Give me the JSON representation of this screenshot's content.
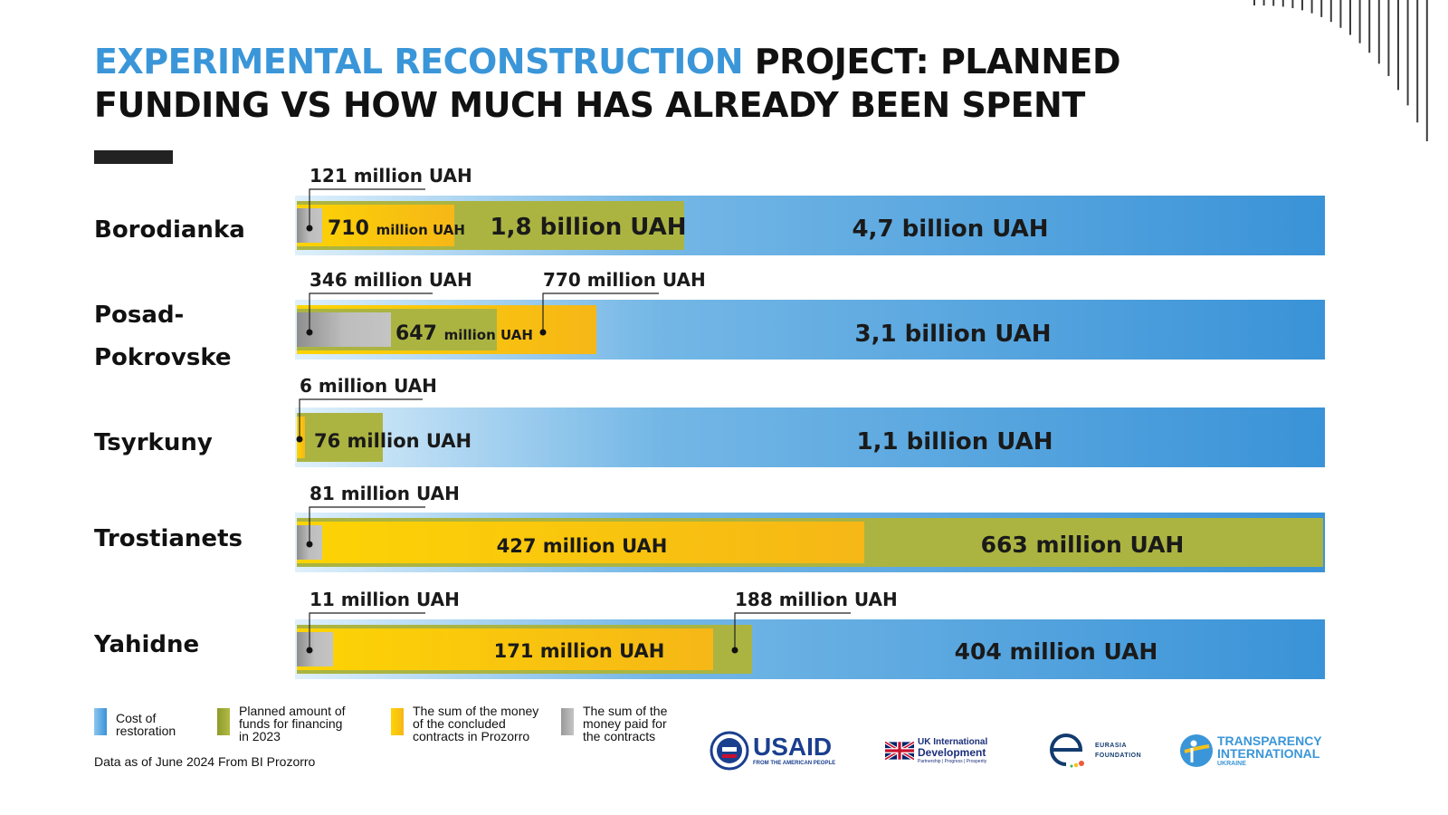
{
  "header": {
    "title_accent": "EXPERIMENTAL RECONSTRUCTION",
    "title_rest_line1": " PROJECT: PLANNED",
    "title_line2": "FUNDING VS HOW MUCH HAS ALREADY BEEN SPENT"
  },
  "colors": {
    "accent": "#3a96d8",
    "cost_of_restoration": "#3a96d8",
    "planned_funds": "#abb441",
    "concluded_contracts": "#f9c60f",
    "paid_contracts": "#bdbdbd"
  },
  "chart_data": {
    "type": "bar",
    "title": "EXPERIMENTAL RECONSTRUCTION PROJECT: PLANNED FUNDING VS HOW MUCH HAS ALREADY BEEN SPENT",
    "unit": "million UAH",
    "categories": [
      "Borodianka",
      "Posad-Pokrovske",
      "Tsyrkuny",
      "Trostianets",
      "Yahidne"
    ],
    "category_labels": [
      [
        "Borodianka"
      ],
      [
        "Posad-",
        "Pokrovske"
      ],
      [
        "Tsyrkuny"
      ],
      [
        "Trostianets"
      ],
      [
        "Yahidne"
      ]
    ],
    "series": [
      {
        "name": "Cost of restoration",
        "values": [
          4700,
          3100,
          1100,
          null,
          404
        ]
      },
      {
        "name": "Planned amount of funds for financing in 2023",
        "values": [
          1800,
          647,
          76,
          663,
          188
        ]
      },
      {
        "name": "The sum of the money of the concluded contracts in Prozorro",
        "values": [
          710,
          770,
          6,
          427,
          171
        ]
      },
      {
        "name": "The sum of the money paid for the contracts",
        "values": [
          121,
          346,
          null,
          81,
          11
        ]
      }
    ],
    "labels": {
      "Borodianka": {
        "cost": "4,7 billion  UAH",
        "planned": "1,8 billion  UAH",
        "contracts_num": "710",
        "contracts_unit": "million UAH",
        "paid": "121 million UAH"
      },
      "Posad-Pokrovske": {
        "cost": "3,1 billion  UAH",
        "planned_num": "647",
        "planned_unit": "million UAH",
        "contracts": "770 million UAH",
        "paid": "346 million UAH"
      },
      "Tsyrkuny": {
        "cost": "1,1  billion  UAH",
        "planned": "76  million UAH",
        "contracts": "6 million UAH"
      },
      "Trostianets": {
        "planned": "663 million UAH",
        "contracts": "427 million UAH",
        "paid": "81 million UAH"
      },
      "Yahidne": {
        "cost": "404 million UAH",
        "planned": "188  million UAH",
        "contracts": "171  million UAH",
        "paid": "11 million UAH"
      }
    },
    "legend_placement": "bottom-left"
  },
  "legend": [
    {
      "label_lines": [
        "Cost of",
        "restoration"
      ]
    },
    {
      "label_lines": [
        "Planned amount of",
        "funds for financing",
        "in 2023"
      ]
    },
    {
      "label_lines": [
        "The sum of the money",
        "of the concluded",
        "contracts in Prozorro"
      ]
    },
    {
      "label_lines": [
        "The sum of the",
        "money paid for",
        "the contracts"
      ]
    }
  ],
  "footnote": "Data as of June 2024 From BI Prozorro",
  "logos": {
    "usaid": {
      "name": "USAID",
      "tagline": "FROM THE AMERICAN PEOPLE"
    },
    "ukid": {
      "line1": "UK International",
      "line2": "Development",
      "tagline": "Partnership  |  Progress  |  Prosperity"
    },
    "eurasia": {
      "line1": "EURASIA",
      "line2": "FOUNDATION"
    },
    "ti": {
      "line1": "TRANSPARENCY",
      "line2": "INTERNATIONAL",
      "line3": "UKRAINE"
    }
  }
}
